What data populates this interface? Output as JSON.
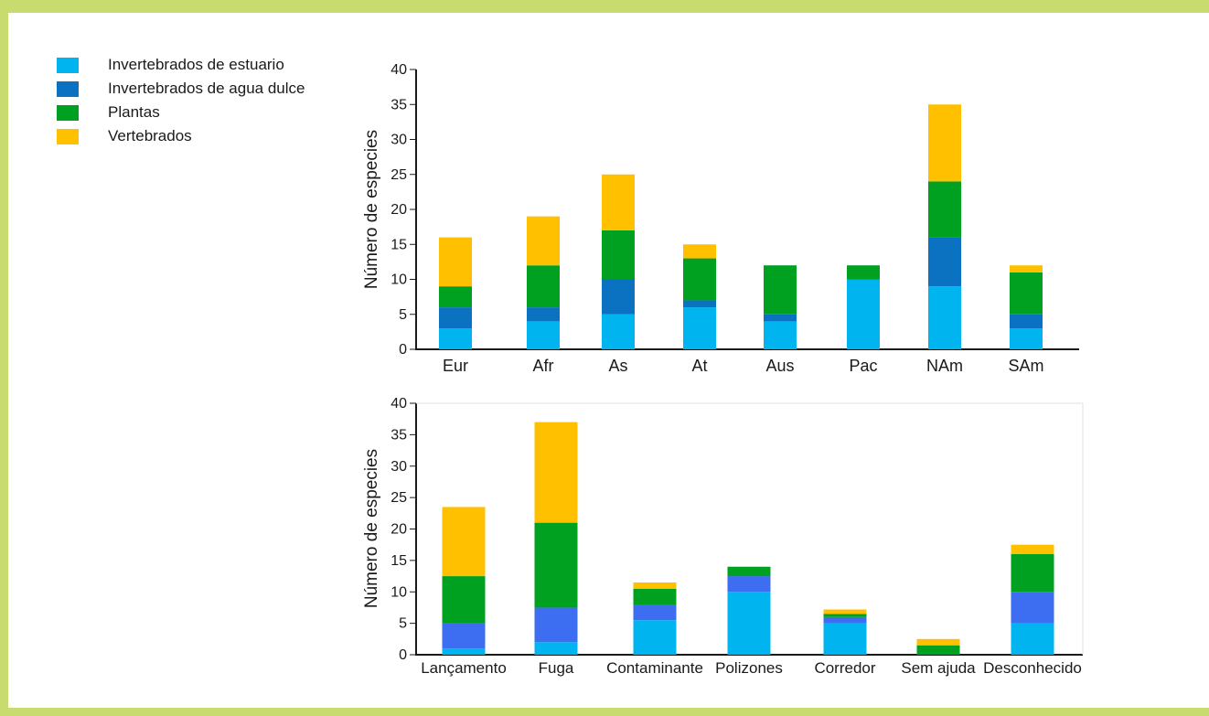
{
  "colors": {
    "frame": "#c8db6e",
    "vertebrados": "#ffc000",
    "plantas": "#00a020",
    "agua_dulce_top": "#0a72c0",
    "agua_dulce_bottom": "#3d6df0",
    "estuario": "#00b4f0"
  },
  "legend": [
    {
      "label": "Invertebrados de estuario",
      "color": "#00b4f0",
      "icon": "square-swatch"
    },
    {
      "label": "Invertebrados de agua dulce",
      "color": "#0a72c0",
      "icon": "square-swatch"
    },
    {
      "label": "Plantas",
      "color": "#00a020",
      "icon": "square-swatch"
    },
    {
      "label": "Vertebrados",
      "color": "#ffc000",
      "icon": "square-swatch"
    }
  ],
  "chart_data": [
    {
      "type": "bar",
      "stacked": true,
      "ylabel": "Número de especies",
      "xlabel": "",
      "ylim": [
        0,
        40
      ],
      "yticks": [
        "0",
        "5",
        "10",
        "15",
        "20",
        "25",
        "30",
        "35",
        "40"
      ],
      "categories": [
        "Eur",
        "Afr",
        "As",
        "At",
        "Aus",
        "Pac",
        "NAm",
        "SAm"
      ],
      "series": [
        {
          "name": "Invertebrados de estuario",
          "color": "#00b4f0",
          "values": [
            3,
            4,
            5,
            6,
            4,
            10,
            9,
            3
          ]
        },
        {
          "name": "Invertebrados de agua dulce",
          "color": "#0a72c0",
          "values": [
            3,
            2,
            5,
            1,
            1,
            0,
            7,
            2
          ]
        },
        {
          "name": "Plantas",
          "color": "#00a020",
          "values": [
            3,
            6,
            7,
            6,
            7,
            2,
            8,
            6
          ]
        },
        {
          "name": "Vertebrados",
          "color": "#ffc000",
          "values": [
            7,
            7,
            8,
            2,
            0,
            0,
            11,
            1
          ]
        }
      ]
    },
    {
      "type": "bar",
      "stacked": true,
      "ylabel": "Número de especies",
      "xlabel": "",
      "ylim": [
        0,
        40
      ],
      "yticks": [
        "0",
        "5",
        "10",
        "15",
        "20",
        "25",
        "30",
        "35",
        "40"
      ],
      "categories": [
        "Lançamento",
        "Fuga",
        "Contaminante",
        "Polizones",
        "Corredor",
        "Sem ajuda",
        "Desconhecido"
      ],
      "series": [
        {
          "name": "Invertebrados de estuario",
          "color": "#00b4f0",
          "values": [
            1,
            2,
            5.5,
            10,
            5,
            0,
            5
          ]
        },
        {
          "name": "Invertebrados de agua dulce",
          "color": "#3d6df0",
          "values": [
            4,
            5.5,
            2.5,
            2.5,
            1,
            0,
            5
          ]
        },
        {
          "name": "Plantas",
          "color": "#00a020",
          "values": [
            7.5,
            13.5,
            2.5,
            1.5,
            0.5,
            1.5,
            6
          ]
        },
        {
          "name": "Vertebrados",
          "color": "#ffc000",
          "values": [
            11,
            16,
            1,
            0,
            0.7,
            1,
            1.5
          ]
        }
      ]
    }
  ]
}
